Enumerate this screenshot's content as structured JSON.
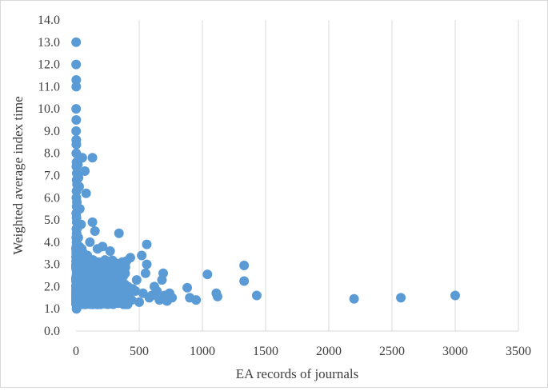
{
  "chart_data": {
    "type": "scatter",
    "title": "",
    "xlabel": "EA records of journals",
    "ylabel": "Weighted average index time",
    "xlim": [
      0,
      3500
    ],
    "ylim": [
      0,
      14
    ],
    "x_ticks": [
      "0",
      "500",
      "1000",
      "1500",
      "2000",
      "2500",
      "3000",
      "3500"
    ],
    "y_ticks": [
      "0.0",
      "1.0",
      "2.0",
      "3.0",
      "4.0",
      "5.0",
      "6.0",
      "7.0",
      "8.0",
      "9.0",
      "10.0",
      "11.0",
      "12.0",
      "13.0",
      "14.0"
    ],
    "grid": "vertical",
    "legend": "none",
    "marker_color": "#5B9BD5",
    "gridline_color": "#d9d9d9",
    "series": [
      {
        "points": [
          [
            1,
            13.0
          ],
          [
            1,
            12.0
          ],
          [
            2,
            11.3
          ],
          [
            2,
            11.0
          ],
          [
            1,
            10.0
          ],
          [
            2,
            9.5
          ],
          [
            1,
            9.0
          ],
          [
            2,
            8.6
          ],
          [
            3,
            8.4
          ],
          [
            2,
            8.0
          ],
          [
            4,
            7.6
          ],
          [
            3,
            7.4
          ],
          [
            6,
            7.1
          ],
          [
            5,
            6.8
          ],
          [
            8,
            6.6
          ],
          [
            4,
            6.3
          ],
          [
            3,
            6.0
          ],
          [
            7,
            5.8
          ],
          [
            5,
            5.6
          ],
          [
            2,
            5.3
          ],
          [
            4,
            5.1
          ],
          [
            6,
            4.9
          ],
          [
            3,
            4.6
          ],
          [
            5,
            4.4
          ],
          [
            2,
            4.2
          ],
          [
            4,
            4.0
          ],
          [
            3,
            3.8
          ],
          [
            2,
            3.6
          ],
          [
            5,
            3.4
          ],
          [
            4,
            3.2
          ],
          [
            2,
            3.0
          ],
          [
            3,
            2.8
          ],
          [
            5,
            2.6
          ],
          [
            2,
            2.4
          ],
          [
            4,
            2.2
          ],
          [
            3,
            2.0
          ],
          [
            2,
            1.8
          ],
          [
            5,
            1.6
          ],
          [
            3,
            1.4
          ],
          [
            2,
            1.2
          ],
          [
            4,
            1.0
          ],
          [
            15,
            7.5
          ],
          [
            20,
            6.9
          ],
          [
            25,
            6.5
          ],
          [
            30,
            5.5
          ],
          [
            40,
            4.8
          ],
          [
            50,
            7.8
          ],
          [
            70,
            7.2
          ],
          [
            80,
            6.2
          ],
          [
            130,
            7.8
          ],
          [
            130,
            4.9
          ],
          [
            150,
            4.5
          ],
          [
            110,
            4.0
          ],
          [
            210,
            3.8
          ],
          [
            170,
            3.7
          ],
          [
            270,
            3.6
          ],
          [
            340,
            4.4
          ],
          [
            560,
            3.9
          ],
          [
            430,
            3.3
          ],
          [
            520,
            3.4
          ],
          [
            560,
            3.0
          ],
          [
            370,
            2.6
          ],
          [
            550,
            2.6
          ],
          [
            690,
            2.6
          ],
          [
            680,
            2.3
          ],
          [
            1040,
            2.55
          ],
          [
            1330,
            2.95
          ],
          [
            1330,
            2.25
          ],
          [
            880,
            1.95
          ],
          [
            1110,
            1.7
          ],
          [
            1120,
            1.55
          ],
          [
            1430,
            1.6
          ],
          [
            900,
            1.5
          ],
          [
            950,
            1.4
          ],
          [
            760,
            1.5
          ],
          [
            720,
            1.35
          ],
          [
            2200,
            1.45
          ],
          [
            2570,
            1.5
          ],
          [
            3000,
            1.6
          ],
          [
            600,
            1.6
          ],
          [
            620,
            2.0
          ],
          [
            480,
            2.3
          ],
          [
            450,
            1.9
          ],
          [
            500,
            1.3
          ],
          [
            420,
            1.6
          ],
          [
            380,
            2.1
          ],
          [
            360,
            1.4
          ],
          [
            320,
            2.7
          ],
          [
            300,
            1.9
          ],
          [
            280,
            2.4
          ],
          [
            260,
            1.6
          ],
          [
            240,
            2.9
          ],
          [
            220,
            2.2
          ],
          [
            200,
            1.5
          ],
          [
            190,
            2.6
          ],
          [
            180,
            3.1
          ],
          [
            160,
            2.0
          ],
          [
            150,
            1.3
          ],
          [
            140,
            2.8
          ],
          [
            120,
            2.3
          ],
          [
            100,
            1.7
          ],
          [
            90,
            3.4
          ],
          [
            80,
            2.5
          ],
          [
            70,
            1.2
          ],
          [
            60,
            3.0
          ],
          [
            55,
            2.1
          ],
          [
            45,
            3.7
          ],
          [
            35,
            2.7
          ],
          [
            30,
            1.6
          ],
          [
            25,
            3.3
          ],
          [
            20,
            2.3
          ],
          [
            18,
            4.2
          ],
          [
            15,
            1.4
          ],
          [
            12,
            3.0
          ],
          [
            10,
            2.0
          ],
          [
            8,
            4.6
          ],
          [
            9,
            1.1
          ],
          [
            110,
            2.9
          ],
          [
            125,
            1.9
          ],
          [
            135,
            3.2
          ],
          [
            145,
            2.5
          ],
          [
            165,
            1.7
          ],
          [
            175,
            2.9
          ],
          [
            185,
            2.0
          ],
          [
            205,
            2.4
          ],
          [
            215,
            1.8
          ],
          [
            230,
            3.2
          ],
          [
            250,
            2.1
          ],
          [
            265,
            1.5
          ],
          [
            290,
            2.8
          ],
          [
            310,
            1.7
          ],
          [
            330,
            2.3
          ],
          [
            350,
            1.9
          ],
          [
            390,
            1.5
          ],
          [
            410,
            2.0
          ],
          [
            440,
            1.4
          ],
          [
            470,
            1.8
          ],
          [
            530,
            1.7
          ],
          [
            580,
            1.5
          ],
          [
            640,
            1.8
          ],
          [
            660,
            1.4
          ],
          [
            700,
            1.6
          ],
          [
            740,
            1.7
          ]
        ]
      }
    ]
  }
}
